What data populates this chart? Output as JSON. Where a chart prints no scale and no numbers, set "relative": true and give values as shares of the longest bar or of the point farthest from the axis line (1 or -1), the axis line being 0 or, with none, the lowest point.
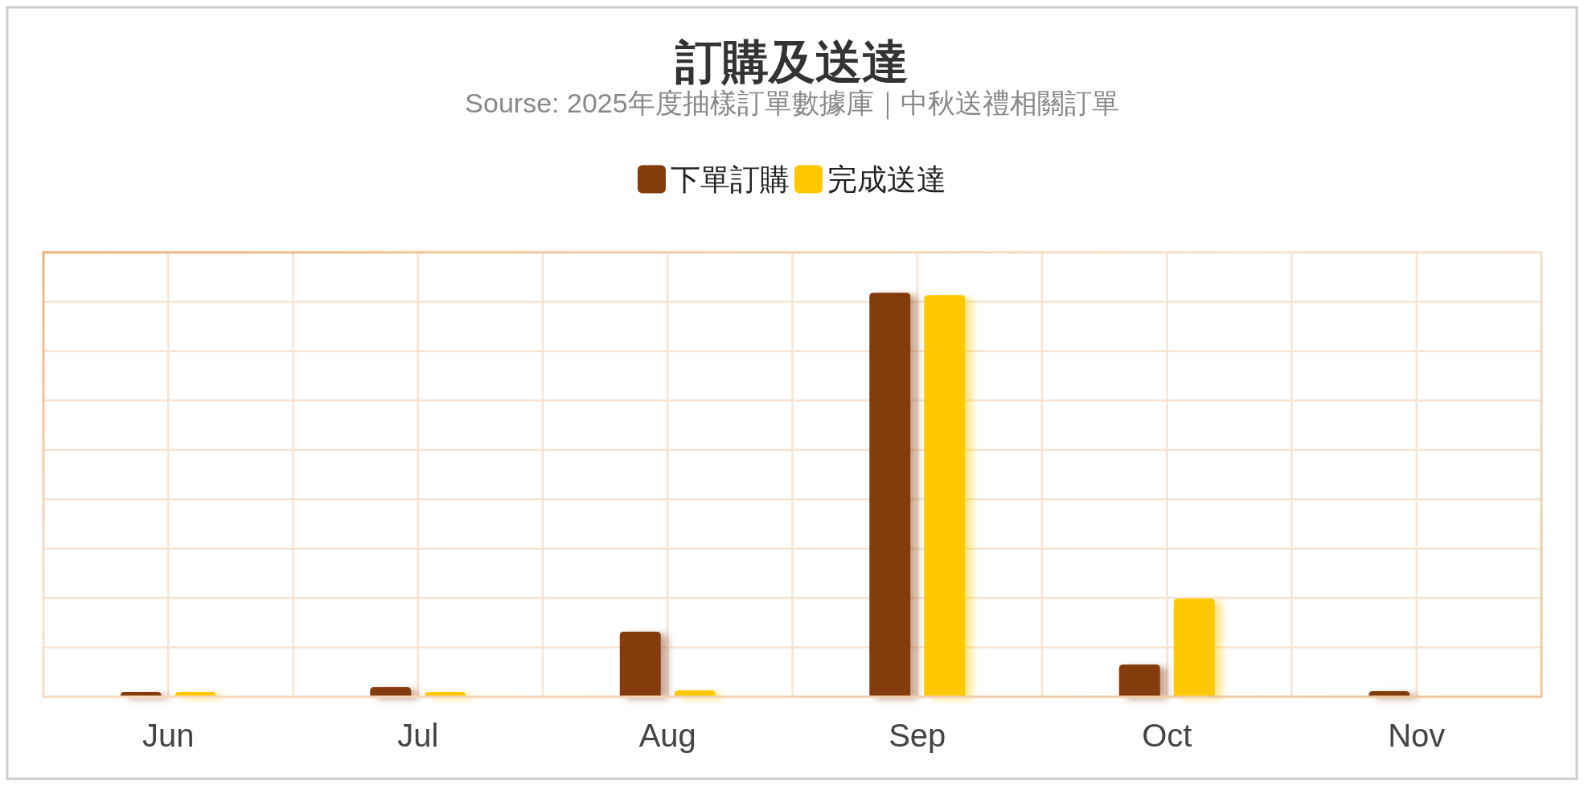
{
  "chart_data": {
    "type": "bar",
    "title": "訂購及送達",
    "subtitle": "Sourse: 2025年度抽樣訂單數據庫｜中秋送禮相關訂單",
    "categories": [
      "Jun",
      "Jul",
      "Aug",
      "Sep",
      "Oct",
      "Nov"
    ],
    "series": [
      {
        "name": "下單訂購",
        "color": "#843c0c",
        "values": [
          0.012,
          0.024,
          0.161,
          1,
          0.08,
          0.014
        ]
      },
      {
        "name": "完成送達",
        "color": "#ffc800",
        "values": [
          0.012,
          0.012,
          0.016,
          0.994,
          0.243,
          0
        ]
      }
    ],
    "relative": true,
    "grid": true,
    "legend": "top"
  }
}
